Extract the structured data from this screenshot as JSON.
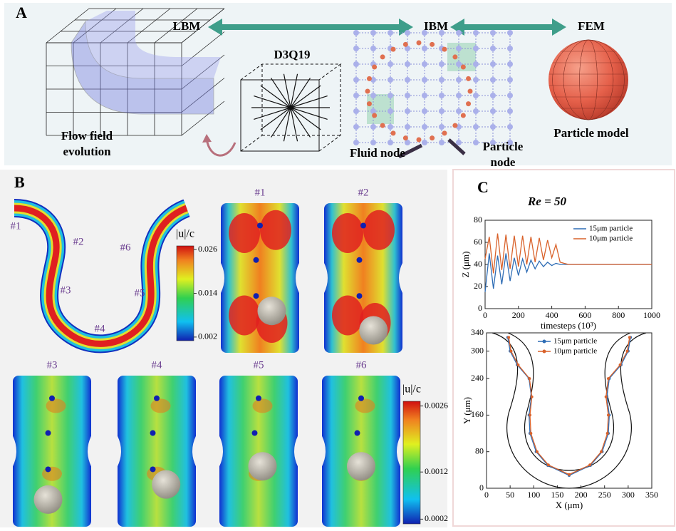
{
  "panel_a": {
    "label": "A",
    "methods": [
      "LBM",
      "IBM",
      "FEM"
    ],
    "lattice": "D3Q19",
    "flow_caption": [
      "Flow field",
      "evolution"
    ],
    "fluid_node": "Fluid node",
    "particle_node": [
      "Particle",
      "node"
    ],
    "particle_model": "Particle model"
  },
  "panel_b": {
    "label": "B",
    "sections": [
      "#1",
      "#2",
      "#3",
      "#4",
      "#5",
      "#6"
    ],
    "colorbars": [
      {
        "label": "|u|/c",
        "lim": [
          0.001,
          0.027
        ],
        "ticks": [
          0.002,
          0.014,
          0.026
        ]
      },
      {
        "label": "|u|/c",
        "lim": [
          0.0001,
          0.0027
        ],
        "ticks": [
          0.0002,
          0.0012,
          0.0026
        ]
      }
    ]
  },
  "panel_c": {
    "label": "C"
  },
  "chart_data": [
    {
      "type": "line",
      "title": "Re = 50",
      "x_label": "timesteps (10³)",
      "y_label": "Z (μm)",
      "x": [
        0,
        25,
        50,
        75,
        100,
        125,
        150,
        175,
        200,
        225,
        250,
        275,
        300,
        325,
        350,
        375,
        400,
        425,
        450,
        475,
        500,
        600,
        700,
        800,
        900,
        1000
      ],
      "series": [
        {
          "name": "15μm particle",
          "color": "#2f6db5",
          "values": [
            15,
            50,
            18,
            48,
            22,
            50,
            25,
            46,
            30,
            45,
            33,
            44,
            36,
            43,
            38,
            42,
            39,
            41,
            40,
            40,
            40,
            40,
            40,
            40,
            40,
            40
          ]
        },
        {
          "name": "10μm particle",
          "color": "#d9622b",
          "values": [
            45,
            65,
            32,
            68,
            35,
            67,
            36,
            66,
            38,
            66,
            40,
            65,
            42,
            64,
            44,
            62,
            46,
            58,
            42,
            41,
            40,
            40,
            40,
            40,
            40,
            40
          ]
        }
      ],
      "xlim": [
        0,
        1000
      ],
      "ylim": [
        0,
        80
      ],
      "xticks": [
        0,
        200,
        400,
        600,
        800,
        1000
      ],
      "yticks": [
        0,
        20,
        40,
        60,
        80
      ],
      "legend": "top-right"
    },
    {
      "type": "line",
      "x_label": "X (μm)",
      "y_label": "Y (μm)",
      "series": [
        {
          "name": "15μm particle",
          "color": "#2f6db5",
          "x": [
            45,
            50,
            65,
            90,
            95,
            90,
            92,
            105,
            130,
            175,
            220,
            245,
            258,
            260,
            255,
            260,
            285,
            300,
            305
          ],
          "values": [
            330,
            300,
            270,
            240,
            200,
            160,
            120,
            80,
            50,
            28,
            50,
            80,
            120,
            160,
            200,
            240,
            270,
            300,
            330
          ]
        },
        {
          "name": "10μm particle",
          "color": "#d9622b",
          "x": [
            47,
            52,
            67,
            91,
            96,
            92,
            94,
            107,
            131,
            175,
            219,
            243,
            256,
            258,
            253,
            258,
            283,
            298,
            303
          ],
          "values": [
            330,
            300,
            270,
            240,
            200,
            160,
            120,
            80,
            51,
            30,
            51,
            80,
            120,
            160,
            200,
            240,
            270,
            300,
            330
          ]
        }
      ],
      "xlim": [
        0,
        350
      ],
      "ylim": [
        0,
        340
      ],
      "xticks": [
        0,
        50,
        100,
        150,
        200,
        250,
        300,
        350
      ],
      "yticks": [
        0,
        80,
        160,
        240,
        300,
        340
      ],
      "legend": "top-center"
    }
  ]
}
